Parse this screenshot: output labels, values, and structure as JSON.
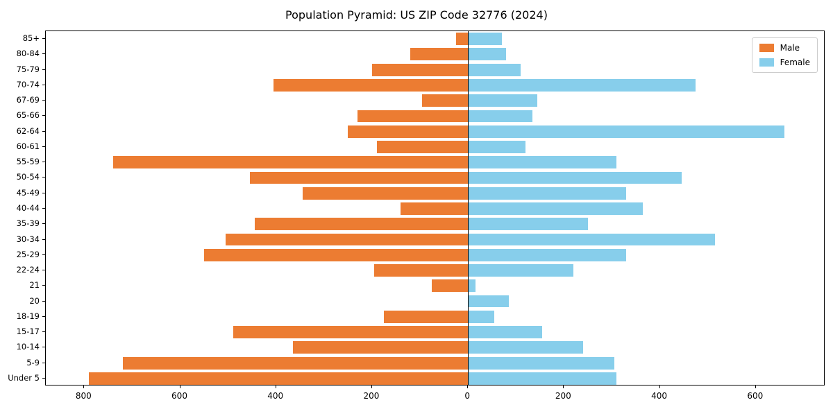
{
  "chart_data": {
    "type": "bar",
    "variant": "population-pyramid",
    "title": "Population Pyramid: US ZIP Code 32776 (2024)",
    "xlabel": "",
    "ylabel": "",
    "categories_top_to_bottom": [
      "85+",
      "80-84",
      "75-79",
      "70-74",
      "67-69",
      "65-66",
      "62-64",
      "60-61",
      "55-59",
      "50-54",
      "45-49",
      "40-44",
      "35-39",
      "30-34",
      "25-29",
      "22-24",
      "21",
      "20",
      "18-19",
      "15-17",
      "10-14",
      "5-9",
      "Under 5"
    ],
    "series": [
      {
        "name": "Male",
        "side": "left",
        "color": "#ec7c32",
        "values": [
          25,
          120,
          200,
          405,
          95,
          230,
          250,
          190,
          740,
          455,
          345,
          140,
          445,
          505,
          550,
          195,
          75,
          0,
          175,
          490,
          365,
          720,
          790
        ]
      },
      {
        "name": "Female",
        "side": "right",
        "color": "#87ceeb",
        "values": [
          70,
          80,
          110,
          475,
          145,
          135,
          660,
          120,
          310,
          445,
          330,
          365,
          250,
          515,
          330,
          220,
          15,
          85,
          55,
          155,
          240,
          305,
          310
        ]
      }
    ],
    "x_ticks": [
      -800,
      -600,
      -400,
      -200,
      0,
      200,
      400,
      600
    ],
    "x_tick_labels": [
      "800",
      "600",
      "400",
      "200",
      "0",
      "200",
      "400",
      "600"
    ],
    "xlim": [
      -880,
      745
    ],
    "grid": false,
    "legend": {
      "position": "upper right",
      "entries": [
        "Male",
        "Female"
      ]
    }
  }
}
